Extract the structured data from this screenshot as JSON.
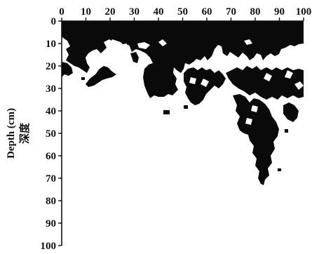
{
  "x_axis": {
    "ticks": [
      "0",
      "10",
      "20",
      "30",
      "40",
      "50",
      "60",
      "70",
      "80",
      "90",
      "100"
    ]
  },
  "y_axis": {
    "ticks": [
      "0",
      "10",
      "20",
      "30",
      "40",
      "50",
      "60",
      "70",
      "80",
      "90",
      "100"
    ],
    "label": "Depth (cm)",
    "label_cn": "深度"
  },
  "colors": {
    "ink": "#111111",
    "stain": "#0a0a0a",
    "background": "#ffffff"
  }
}
